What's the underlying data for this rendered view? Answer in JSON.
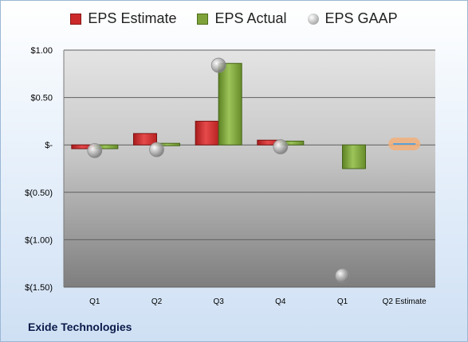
{
  "company_name": "Exide Technologies",
  "colors": {
    "estimate": "#cc2a2a",
    "actual": "#7fa33a",
    "gaap": "#a8a8a8",
    "estimate_marker": "#f2b07a",
    "estimate_line": "#5aa0d8"
  },
  "legend": {
    "estimate": "EPS Estimate",
    "actual": "EPS Actual",
    "gaap": "EPS GAAP"
  },
  "chart_data": {
    "type": "bar",
    "categories": [
      "Q1",
      "Q2",
      "Q3",
      "Q4",
      "Q1",
      "Q2 Estimate"
    ],
    "series": [
      {
        "name": "EPS Estimate",
        "values": [
          -0.04,
          0.12,
          0.25,
          0.05,
          null,
          0.01
        ]
      },
      {
        "name": "EPS Actual",
        "values": [
          -0.04,
          0.02,
          0.86,
          0.04,
          -0.25,
          null
        ]
      },
      {
        "name": "EPS GAAP",
        "type": "scatter",
        "values": [
          -0.06,
          -0.05,
          0.84,
          -0.02,
          -1.38,
          null
        ]
      }
    ],
    "ylim": [
      -1.5,
      1.0
    ],
    "yticks": [
      1.0,
      0.5,
      0,
      -0.5,
      -1.0,
      -1.5
    ],
    "ytick_labels": [
      "$1.00",
      "$0.50",
      "$-",
      "$(0.50)",
      "$(1.00)",
      "$(1.50)"
    ],
    "legend_position": "top-center",
    "grid": true
  }
}
